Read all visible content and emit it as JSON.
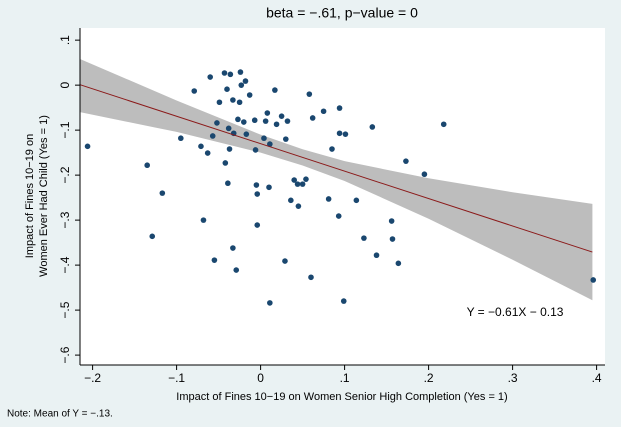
{
  "chart_data": {
    "type": "scatter",
    "title": "beta = −.61, p−value = 0",
    "xlabel": "Impact of Fines 10−19 on Women Senior High Completion (Yes = 1)",
    "ylabel": [
      "Impact of Fines 10−19 on",
      "Women Ever Had Child (Yes = 1)"
    ],
    "note": "Note: Mean of Y = −.13.",
    "annotation": "Y = −0.61X − 0.13",
    "color": "#1a476f",
    "x": [
      -0.206,
      -0.135,
      -0.117,
      -0.129,
      -0.095,
      -0.079,
      -0.071,
      -0.068,
      -0.06,
      -0.063,
      -0.057,
      -0.052,
      -0.055,
      -0.049,
      -0.043,
      -0.04,
      -0.038,
      -0.037,
      -0.042,
      -0.036,
      -0.033,
      -0.032,
      -0.027,
      -0.025,
      -0.024,
      -0.023,
      -0.02,
      -0.017,
      -0.013,
      -0.039,
      -0.033,
      -0.029,
      -0.018,
      -0.007,
      -0.006,
      -0.005,
      -0.004,
      -0.004,
      0.004,
      0.006,
      0.008,
      0.011,
      0.01,
      0.011,
      0.017,
      0.019,
      0.025,
      0.03,
      0.029,
      0.032,
      0.036,
      0.04,
      0.044,
      0.045,
      0.05,
      0.054,
      0.058,
      0.06,
      0.062,
      0.075,
      0.081,
      0.085,
      0.093,
      0.094,
      0.099,
      0.114,
      0.123,
      0.133,
      0.138,
      0.157,
      0.156,
      0.164,
      0.173,
      0.195,
      0.218,
      0.396,
      0.094,
      0.101
    ],
    "y": [
      -0.136,
      -0.178,
      -0.24,
      -0.336,
      -0.118,
      -0.013,
      -0.136,
      -0.3,
      0.018,
      -0.151,
      -0.113,
      -0.084,
      -0.389,
      -0.038,
      0.027,
      -0.009,
      -0.096,
      -0.142,
      -0.173,
      0.024,
      -0.033,
      -0.107,
      -0.076,
      -0.038,
      0.029,
      0,
      -0.082,
      -0.109,
      -0.022,
      -0.218,
      -0.362,
      -0.411,
      0.009,
      -0.078,
      -0.144,
      -0.222,
      -0.311,
      -0.242,
      -0.118,
      -0.08,
      -0.062,
      -0.131,
      -0.227,
      -0.484,
      -0.011,
      -0.087,
      -0.069,
      -0.12,
      -0.391,
      -0.08,
      -0.256,
      -0.211,
      -0.22,
      -0.269,
      -0.22,
      -0.209,
      -0.02,
      -0.427,
      -0.073,
      -0.058,
      -0.253,
      -0.142,
      -0.291,
      -0.107,
      -0.48,
      -0.256,
      -0.34,
      -0.093,
      -0.378,
      -0.342,
      -0.302,
      -0.396,
      -0.169,
      -0.198,
      -0.087,
      -0.433,
      -0.051,
      -0.109
    ],
    "fit": {
      "x": [
        -0.215,
        0.395
      ],
      "y": [
        0.001,
        -0.371
      ],
      "color": "#8b1a1a"
    },
    "band": {
      "x": [
        -0.215,
        -0.1,
        0,
        0.05,
        0.1,
        0.2,
        0.3,
        0.395
      ],
      "upper": [
        0.058,
        -0.034,
        -0.11,
        -0.1425,
        -0.169,
        -0.207,
        -0.238,
        -0.264
      ],
      "lower": [
        -0.06,
        -0.104,
        -0.15,
        -0.1785,
        -0.213,
        -0.297,
        -0.388,
        -0.478
      ],
      "color": "#bdbdbd"
    },
    "xlim": [
      -0.215,
      0.41
    ],
    "ylim": [
      -0.622,
      0.127
    ],
    "xticks": [
      {
        "value": -0.2,
        "label": "−.2"
      },
      {
        "value": -0.1,
        "label": "−.1"
      },
      0,
      {
        "value": 0.1,
        "label": ".1"
      },
      {
        "value": 0.2,
        "label": ".2"
      },
      {
        "value": 0.3,
        "label": ".3"
      },
      {
        "value": 0.4,
        "label": ".4"
      }
    ],
    "yticks": [
      {
        "value": 0.1,
        "label": ".1"
      },
      0,
      {
        "value": -0.1,
        "label": "−.1"
      },
      {
        "value": -0.2,
        "label": "−.2"
      },
      {
        "value": -0.3,
        "label": "−.3"
      },
      {
        "value": -0.4,
        "label": "−.4"
      },
      {
        "value": -0.5,
        "label": "−.5"
      },
      {
        "value": -0.6,
        "label": "−.6"
      }
    ]
  }
}
